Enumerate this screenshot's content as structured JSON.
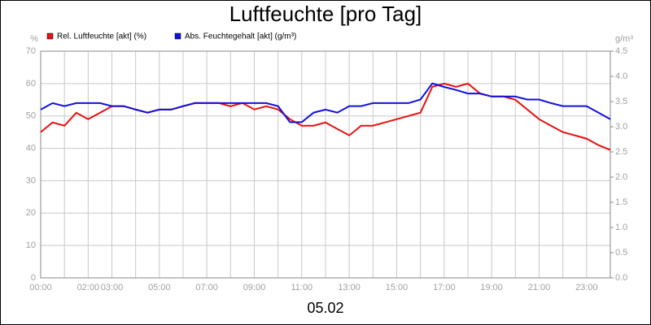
{
  "chart_data": {
    "type": "line",
    "title": "Luftfeuchte [pro Tag]",
    "xlabel": "05.02",
    "ylabel": "%",
    "y2label": "g/m³",
    "x": [
      0,
      0.5,
      1,
      1.5,
      2,
      2.5,
      3,
      3.5,
      4,
      4.5,
      5,
      5.5,
      6,
      6.5,
      7,
      7.5,
      8,
      8.5,
      9,
      9.5,
      10,
      10.5,
      11,
      11.5,
      12,
      12.5,
      13,
      13.5,
      14,
      14.5,
      15,
      15.5,
      16,
      16.5,
      17,
      17.5,
      18,
      18.5,
      19,
      19.5,
      20,
      20.5,
      21,
      21.5,
      22,
      22.5,
      23,
      23.5,
      24
    ],
    "series": [
      {
        "name": "Rel. Luftfeuchte [akt] (%)",
        "color": "#e81010",
        "values": [
          45,
          48,
          47,
          51,
          49,
          51,
          53,
          53,
          52,
          51,
          52,
          52,
          53,
          54,
          54,
          54,
          53,
          54,
          52,
          53,
          52,
          49,
          47,
          47,
          48,
          46,
          44,
          47,
          47,
          48,
          49,
          50,
          51,
          59,
          60,
          59,
          60,
          57,
          56,
          56,
          55,
          52,
          49,
          47,
          45,
          44,
          43,
          41,
          39.5
        ]
      },
      {
        "name": "Abs. Feuchtegehalt [akt] (g/m³)",
        "color": "#1010e0",
        "axis": "y2",
        "values": [
          3.34,
          3.47,
          3.41,
          3.47,
          3.47,
          3.47,
          3.41,
          3.41,
          3.34,
          3.28,
          3.34,
          3.34,
          3.41,
          3.47,
          3.47,
          3.47,
          3.47,
          3.47,
          3.47,
          3.47,
          3.41,
          3.09,
          3.09,
          3.28,
          3.34,
          3.28,
          3.41,
          3.41,
          3.47,
          3.47,
          3.47,
          3.47,
          3.54,
          3.86,
          3.79,
          3.73,
          3.66,
          3.66,
          3.6,
          3.6,
          3.6,
          3.54,
          3.54,
          3.47,
          3.41,
          3.41,
          3.41,
          3.28,
          3.15
        ]
      }
    ],
    "xlim": [
      0,
      24
    ],
    "xticks": [
      {
        "value": 0,
        "label": "00:00"
      },
      {
        "value": 2,
        "label": "02:00"
      },
      {
        "value": 3,
        "label": "03:00"
      },
      {
        "value": 5,
        "label": "05:00"
      },
      {
        "value": 7,
        "label": "07:00"
      },
      {
        "value": 9,
        "label": "09:00"
      },
      {
        "value": 11,
        "label": "11:00"
      },
      {
        "value": 13,
        "label": "13:00"
      },
      {
        "value": 15,
        "label": "15:00"
      },
      {
        "value": 17,
        "label": "17:00"
      },
      {
        "value": 19,
        "label": "19:00"
      },
      {
        "value": 21,
        "label": "21:00"
      },
      {
        "value": 23,
        "label": "23:00"
      }
    ],
    "xminor": [
      1,
      4,
      6,
      8,
      10,
      12,
      14,
      16,
      18,
      20,
      22,
      24
    ],
    "ylim": [
      0,
      70
    ],
    "yticks": [
      0,
      10,
      20,
      30,
      40,
      50,
      60,
      70
    ],
    "y2lim": [
      0,
      4.5
    ],
    "y2ticks": [
      {
        "value": 0,
        "label": "0.0"
      },
      0.5,
      {
        "value": 1,
        "label": "1.0"
      },
      1.5,
      {
        "value": 2,
        "label": "2.0"
      },
      2.5,
      {
        "value": 3,
        "label": "3.0"
      },
      3.5,
      {
        "value": 4,
        "label": "4.0"
      },
      4.5
    ],
    "grid": true
  }
}
